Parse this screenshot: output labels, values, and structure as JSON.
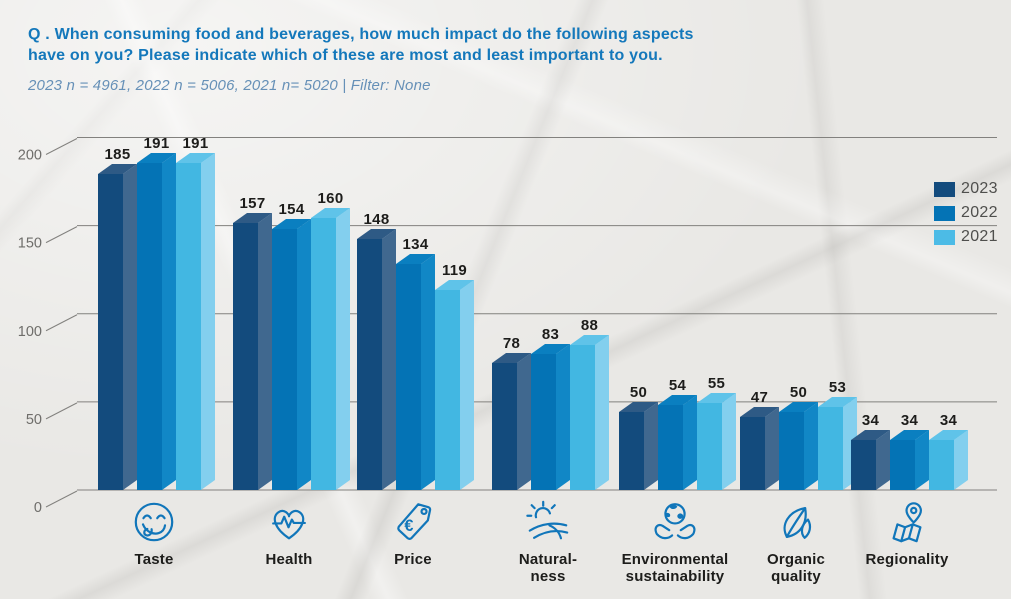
{
  "header": {
    "question": "Q . When consuming food and beverages, how much impact do the following aspects\nhave on you? Please indicate which of these are most and least important to you.",
    "sample_note": "2023 n = 4961, 2022 n = 5006, 2021 n= 5020 | Filter: None"
  },
  "colors": {
    "title_blue": "#1478bb",
    "subtitle_blue": "#6690b7",
    "icon_blue": "#1176ba",
    "grid_gray": "#82817e",
    "axis_label_gray": "#6e6d6a",
    "legend_text_gray": "#4f4f4d",
    "label_black": "#1d1d1b",
    "background_paper": "#e9e8e5"
  },
  "legend": [
    {
      "label": "2023",
      "color": "#134b7d"
    },
    {
      "label": "2022",
      "color": "#0473b5"
    },
    {
      "label": "2021",
      "color": "#4cbbe6"
    }
  ],
  "chart_data": {
    "type": "bar",
    "style": "3d-grouped-columns",
    "title": "When consuming food and beverages, how much impact do the following aspects have on you?",
    "categories": [
      {
        "label": "Taste",
        "icon": "taste-icon"
      },
      {
        "label": "Health",
        "icon": "health-icon"
      },
      {
        "label": "Price",
        "icon": "price-icon"
      },
      {
        "label": "Natural-\nness",
        "icon": "naturalness-icon"
      },
      {
        "label": "Environmental\nsustainability",
        "icon": "environmental-sustainability-icon"
      },
      {
        "label": "Organic\nquality",
        "icon": "organic-quality-icon"
      },
      {
        "label": "Regionality",
        "icon": "regionality-icon"
      }
    ],
    "series": [
      {
        "name": "2023",
        "values": [
          185,
          157,
          148,
          78,
          50,
          47,
          34
        ],
        "front": "#134b7d",
        "side": "#40688f",
        "top": "#2e5a85"
      },
      {
        "name": "2022",
        "values": [
          191,
          154,
          134,
          83,
          54,
          50,
          34
        ],
        "front": "#0473b5",
        "side": "#1187c6",
        "top": "#0a7fc0"
      },
      {
        "name": "2021",
        "values": [
          191,
          160,
          119,
          88,
          55,
          53,
          34
        ],
        "front": "#42b7e2",
        "side": "#83cfee",
        "top": "#5fc3e9"
      }
    ],
    "ylim": [
      0,
      200
    ],
    "yticks": [
      0,
      50,
      100,
      150,
      200
    ],
    "grid": true,
    "value_labels": true,
    "legend_position": "top-right"
  },
  "icons": {
    "price_currency": "€"
  }
}
